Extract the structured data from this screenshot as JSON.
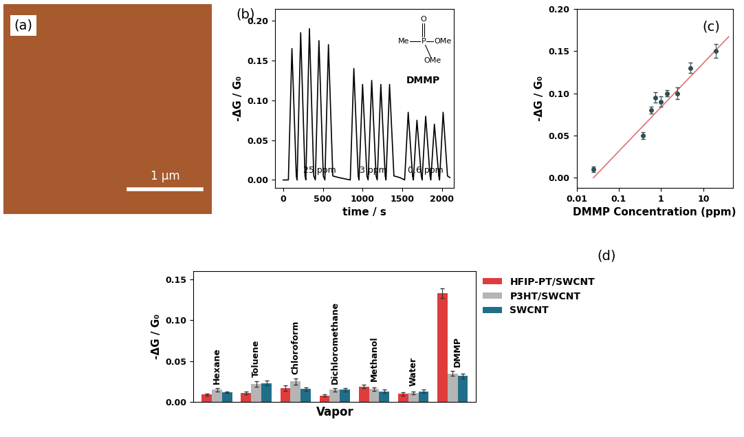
{
  "chart_data": [
    {
      "type": "image",
      "panel_label": "(a)",
      "scale_bar": "1 μm",
      "color": "#a65a2e"
    },
    {
      "type": "line",
      "panel_label": "(b)",
      "xlabel": "time / s",
      "ylabel": "-ΔG / G₀",
      "color": "#000000",
      "x": [
        0,
        65,
        110,
        165,
        175,
        220,
        275,
        285,
        330,
        385,
        405,
        450,
        505,
        525,
        570,
        625,
        700,
        845,
        890,
        945,
        955,
        1000,
        1055,
        1070,
        1115,
        1170,
        1185,
        1230,
        1285,
        1295,
        1340,
        1395,
        1470,
        1530,
        1575,
        1630,
        1640,
        1685,
        1740,
        1750,
        1795,
        1850,
        1860,
        1905,
        1960,
        1970,
        2015,
        2070,
        2100
      ],
      "values": [
        0.0,
        0.0,
        0.165,
        0.005,
        0.0,
        0.185,
        0.005,
        0.0,
        0.19,
        0.005,
        0.0,
        0.175,
        0.005,
        0.0,
        0.17,
        0.005,
        0.003,
        0.0,
        0.14,
        0.005,
        0.0,
        0.12,
        0.005,
        0.0,
        0.125,
        0.005,
        0.0,
        0.12,
        0.005,
        0.0,
        0.12,
        0.005,
        0.003,
        0.0,
        0.085,
        0.005,
        0.0,
        0.075,
        0.005,
        0.0,
        0.08,
        0.005,
        0.0,
        0.07,
        0.005,
        0.0,
        0.085,
        0.005,
        0.003
      ],
      "xlim": [
        -100,
        2150
      ],
      "xticks": [
        0,
        500,
        1000,
        1500,
        2000
      ],
      "ylim": [
        -0.01,
        0.215
      ],
      "yticks": [
        {
          "value": 0,
          "label": "0.00"
        },
        {
          "value": 0.05,
          "label": "0.05"
        },
        {
          "value": 0.1,
          "label": "0.10"
        },
        {
          "value": 0.15,
          "label": "0.15"
        },
        {
          "value": 0.2,
          "label": "0.20"
        }
      ],
      "annotations": [
        "25 ppm",
        "3 ppm",
        "0.6 ppm"
      ],
      "structure": {
        "name": "DMMP",
        "atoms": [
          "O",
          "Me",
          "P",
          "OMe",
          "OMe"
        ]
      }
    },
    {
      "type": "scatter",
      "panel_label": "(c)",
      "xlabel": "DMMP Concentration (ppm)",
      "ylabel": "-ΔG / G₀",
      "log": "x",
      "color": "#2f4f4f",
      "marker": "o",
      "x": [
        0.025,
        0.37,
        0.58,
        0.74,
        1.0,
        1.4,
        2.4,
        5.0,
        20
      ],
      "values": [
        0.01,
        0.05,
        0.08,
        0.095,
        0.09,
        0.1,
        0.1,
        0.13,
        0.15
      ],
      "errors": [
        0.003,
        0.004,
        0.004,
        0.006,
        0.006,
        0.004,
        0.007,
        0.006,
        0.008
      ],
      "fit": {
        "x": [
          0.025,
          40
        ],
        "values": [
          0.0,
          0.167
        ],
        "color": "#e07070"
      },
      "xlim": [
        0.01,
        50
      ],
      "xticks": [
        0.01,
        0.1,
        1,
        10
      ],
      "ylim": [
        -0.012,
        0.2
      ],
      "yticks": [
        {
          "value": 0,
          "label": "0.00"
        },
        {
          "value": 0.05,
          "label": "0.05"
        },
        {
          "value": 0.1,
          "label": "0.10"
        },
        {
          "value": 0.15,
          "label": "0.15"
        },
        {
          "value": 0.2,
          "label": "0.20"
        }
      ]
    },
    {
      "type": "bar",
      "panel_label": "(d)",
      "xlabel": "Vapor",
      "ylabel": "-ΔG / G₀",
      "legend": "upper right",
      "tick_labels": "y",
      "categories": [
        "Hexane",
        "Toluene",
        "Chloroform",
        "Dichloromethane",
        "Methanol",
        "Water",
        "DMMP"
      ],
      "series": [
        {
          "name": "HFIP-PT/SWCNT",
          "color": "#e03c3c",
          "values": [
            0.009,
            0.011,
            0.017,
            0.008,
            0.019,
            0.01,
            0.133
          ],
          "errors": [
            0.001,
            0.002,
            0.003,
            0.001,
            0.002,
            0.002,
            0.006
          ]
        },
        {
          "name": "P3HT/SWCNT",
          "color": "#b5b5b5",
          "values": [
            0.015,
            0.022,
            0.025,
            0.015,
            0.016,
            0.011,
            0.035
          ],
          "errors": [
            0.002,
            0.003,
            0.004,
            0.002,
            0.002,
            0.002,
            0.003
          ]
        },
        {
          "name": "SWCNT",
          "color": "#1f6f8b",
          "values": [
            0.012,
            0.023,
            0.016,
            0.015,
            0.013,
            0.013,
            0.032
          ],
          "errors": [
            0.001,
            0.003,
            0.002,
            0.002,
            0.002,
            0.002,
            0.003
          ]
        }
      ],
      "ylim": [
        0,
        0.16
      ],
      "yticks": [
        {
          "value": 0,
          "label": "0.00"
        },
        {
          "value": 0.05,
          "label": "0.05"
        },
        {
          "value": 0.1,
          "label": "0.10"
        },
        {
          "value": 0.15,
          "label": "0.15"
        }
      ]
    }
  ]
}
